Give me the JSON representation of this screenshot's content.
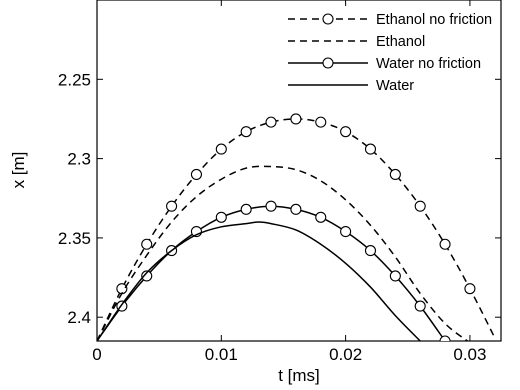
{
  "chart_data": {
    "type": "line",
    "title": "",
    "xlabel": "t [ms]",
    "ylabel": "x [m]",
    "xlim": [
      0,
      0.0325
    ],
    "ylim": [
      2.415,
      2.2
    ],
    "y_inverted": true,
    "grid": false,
    "legend_position": "top-right",
    "x_ticks": [
      {
        "value": 0,
        "label": "0"
      },
      {
        "value": 0.01,
        "label": "0.01"
      },
      {
        "value": 0.02,
        "label": "0.02"
      },
      {
        "value": 0.03,
        "label": "0.03"
      }
    ],
    "y_ticks": [
      {
        "value": 2.25,
        "label": "2.25"
      },
      {
        "value": 2.3,
        "label": "2.3"
      },
      {
        "value": 2.35,
        "label": "2.35"
      },
      {
        "value": 2.4,
        "label": "2.4"
      }
    ],
    "series": [
      {
        "name": "Ethanol no friction",
        "line_style": "dashed",
        "marker": "circle",
        "x": [
          0,
          0.002,
          0.004,
          0.006,
          0.008,
          0.01,
          0.012,
          0.014,
          0.016,
          0.018,
          0.02,
          0.022,
          0.024,
          0.026,
          0.028,
          0.03,
          0.032
        ],
        "y": [
          2.415,
          2.382,
          2.354,
          2.33,
          2.31,
          2.294,
          2.283,
          2.277,
          2.275,
          2.277,
          2.283,
          2.294,
          2.31,
          2.33,
          2.354,
          2.382,
          2.413
        ],
        "marker_x": [
          0.002,
          0.004,
          0.006,
          0.008,
          0.01,
          0.012,
          0.014,
          0.016,
          0.018,
          0.02,
          0.022,
          0.024,
          0.026,
          0.028,
          0.03
        ],
        "marker_y": [
          2.382,
          2.354,
          2.33,
          2.31,
          2.294,
          2.283,
          2.277,
          2.275,
          2.277,
          2.283,
          2.294,
          2.31,
          2.33,
          2.354,
          2.382
        ]
      },
      {
        "name": "Ethanol",
        "line_style": "dashed",
        "marker": "none",
        "x": [
          0,
          0.002,
          0.004,
          0.006,
          0.008,
          0.01,
          0.012,
          0.014,
          0.016,
          0.018,
          0.02,
          0.022,
          0.024,
          0.026,
          0.028,
          0.0298
        ],
        "y": [
          2.415,
          2.385,
          2.361,
          2.34,
          2.324,
          2.313,
          2.306,
          2.305,
          2.307,
          2.314,
          2.326,
          2.342,
          2.362,
          2.385,
          2.404,
          2.415
        ]
      },
      {
        "name": "Water no friction",
        "line_style": "solid",
        "marker": "circle",
        "x": [
          0,
          0.002,
          0.004,
          0.006,
          0.008,
          0.01,
          0.012,
          0.014,
          0.016,
          0.018,
          0.02,
          0.022,
          0.024,
          0.026,
          0.028
        ],
        "y": [
          2.415,
          2.393,
          2.374,
          2.358,
          2.346,
          2.337,
          2.332,
          2.33,
          2.332,
          2.337,
          2.346,
          2.358,
          2.374,
          2.393,
          2.415
        ],
        "marker_x": [
          0.002,
          0.004,
          0.006,
          0.008,
          0.01,
          0.012,
          0.014,
          0.016,
          0.018,
          0.02,
          0.022,
          0.024,
          0.026,
          0.028
        ],
        "marker_y": [
          2.393,
          2.374,
          2.358,
          2.346,
          2.337,
          2.332,
          2.33,
          2.332,
          2.337,
          2.346,
          2.358,
          2.374,
          2.393,
          2.415
        ]
      },
      {
        "name": "Water",
        "line_style": "solid",
        "marker": "none",
        "x": [
          0,
          0.002,
          0.004,
          0.006,
          0.008,
          0.01,
          0.012,
          0.013,
          0.014,
          0.016,
          0.018,
          0.02,
          0.022,
          0.024,
          0.026
        ],
        "y": [
          2.415,
          2.392,
          2.372,
          2.358,
          2.348,
          2.343,
          2.341,
          2.34,
          2.341,
          2.345,
          2.354,
          2.366,
          2.381,
          2.399,
          2.415
        ]
      }
    ]
  }
}
